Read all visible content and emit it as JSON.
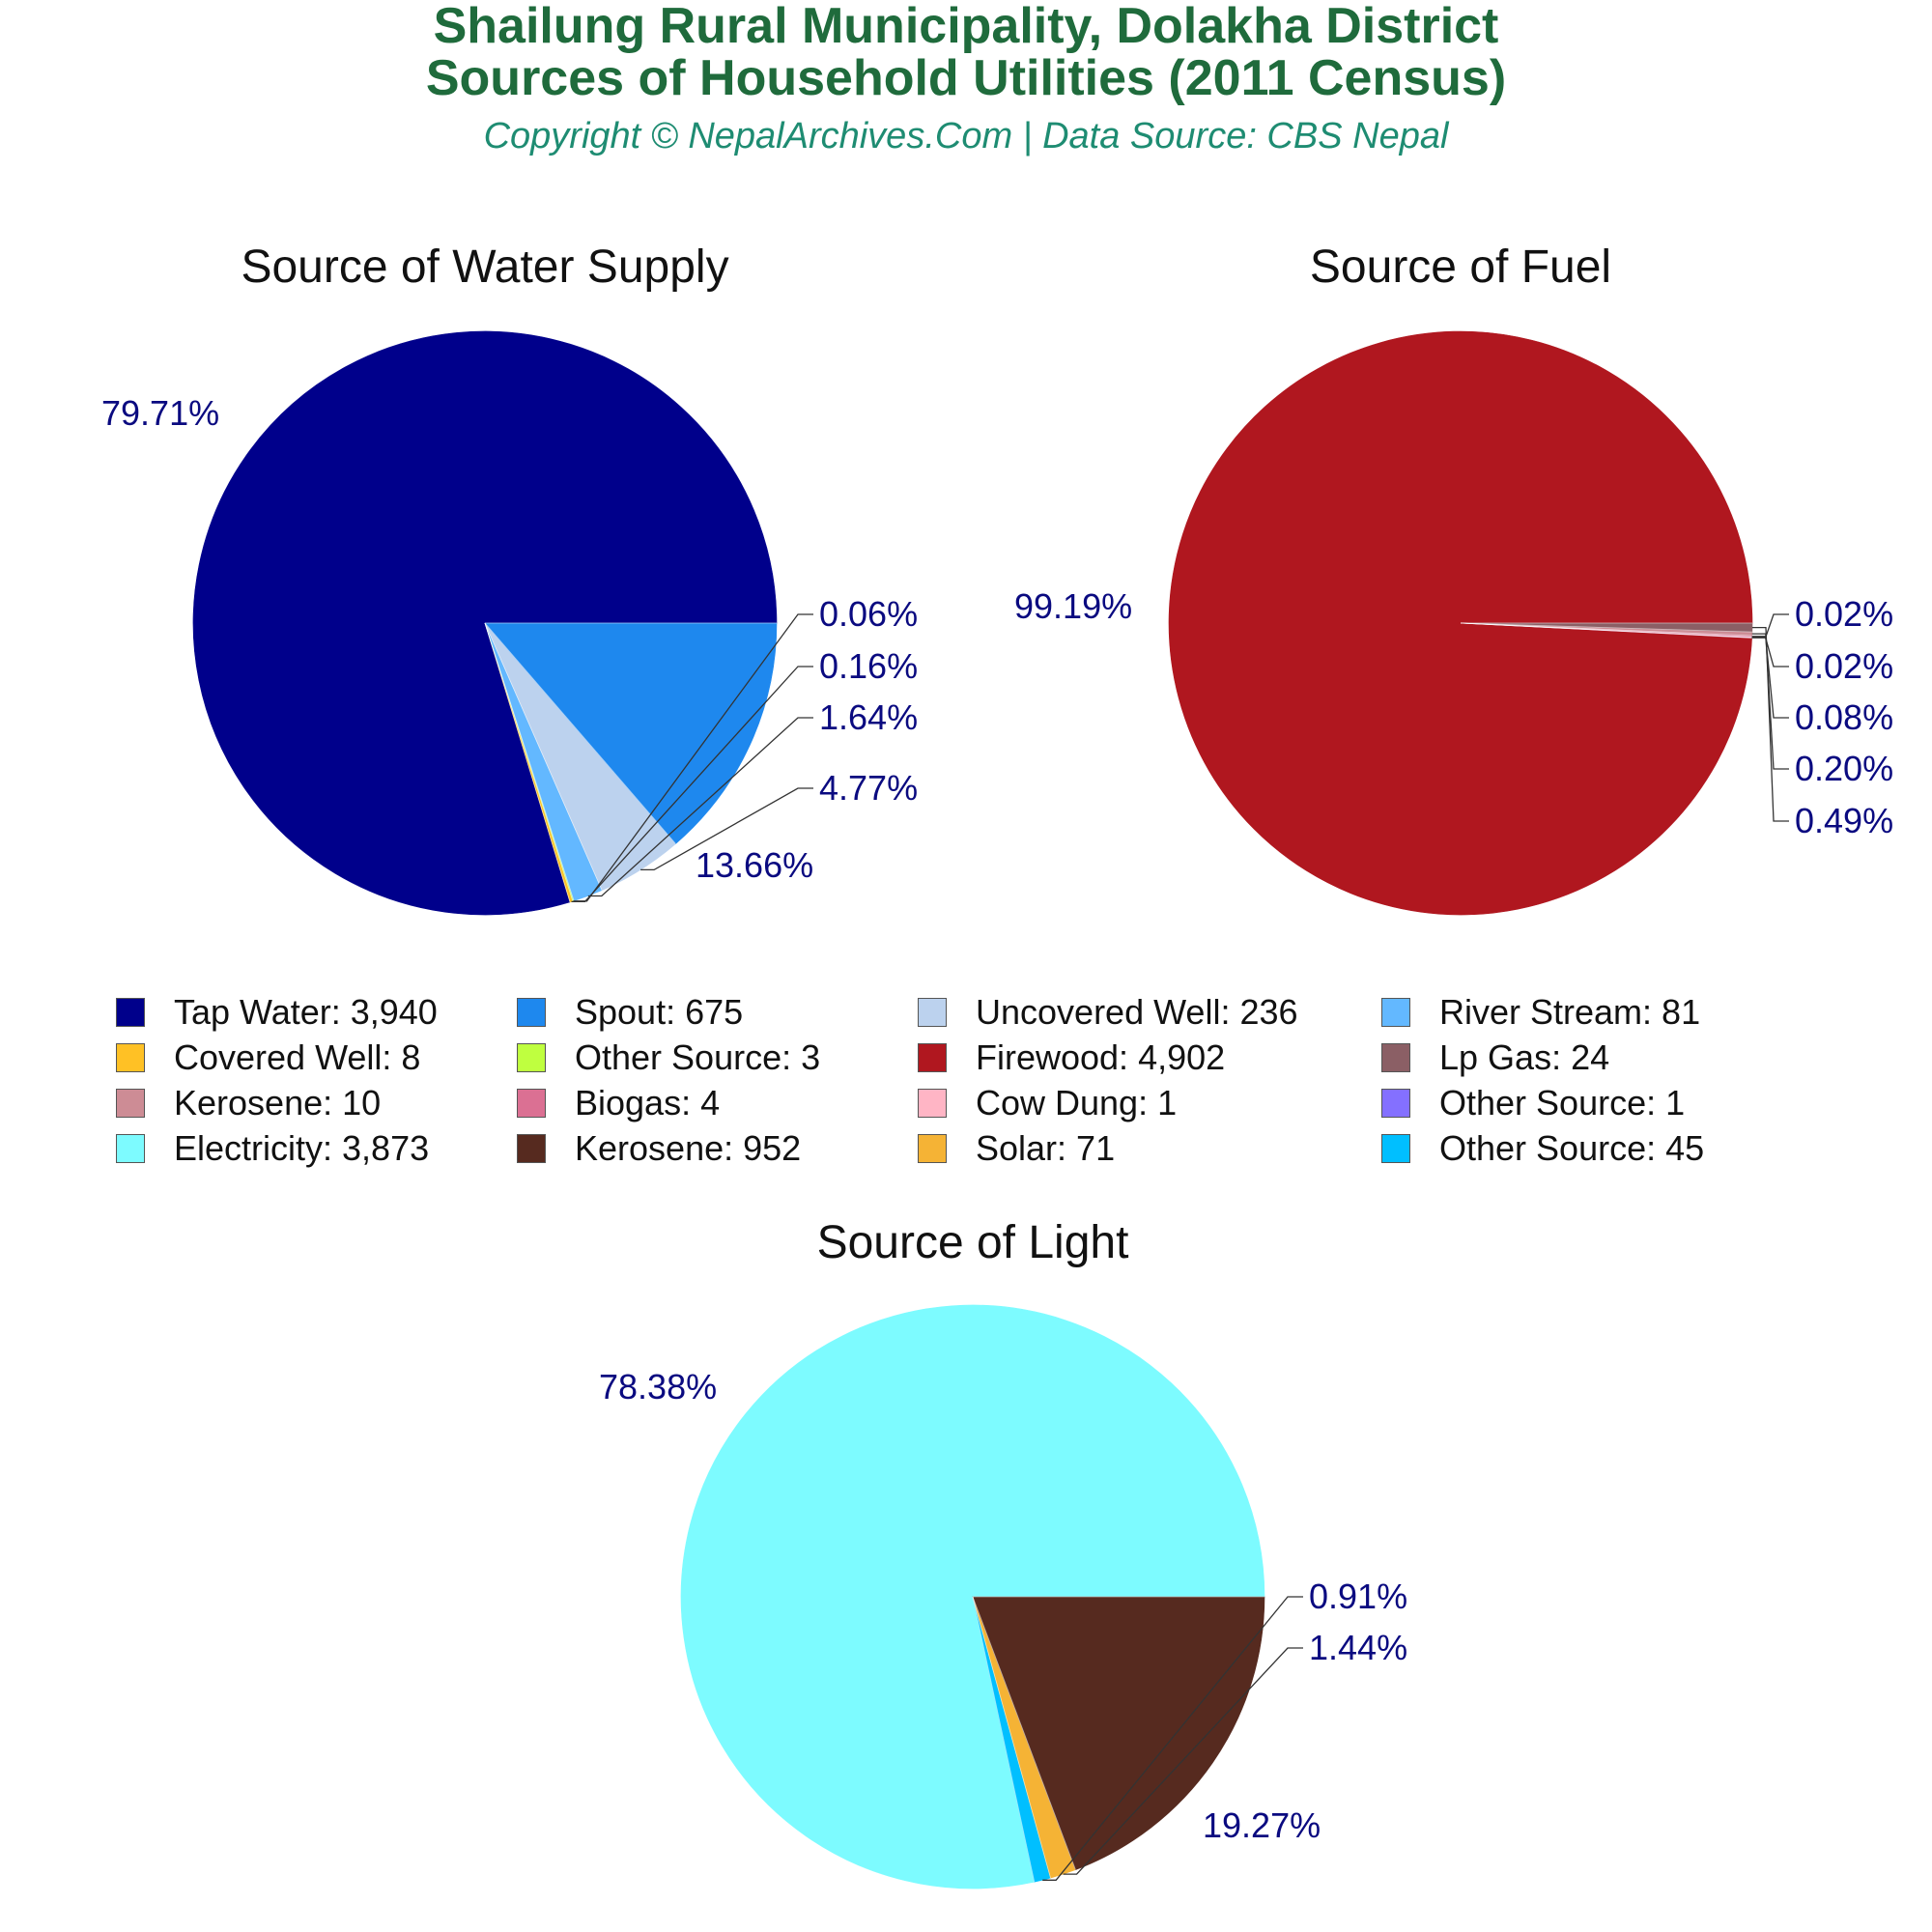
{
  "header": {
    "title_line1": "Shailung Rural Municipality, Dolakha District",
    "title_line2": "Sources of Household Utilities (2011 Census)",
    "subtitle": "Copyright © NepalArchives.Com | Data Source: CBS Nepal"
  },
  "chart_data": [
    {
      "type": "pie",
      "title": "Source of Water Supply",
      "slices": [
        {
          "label": "Tap Water",
          "value": 3940,
          "pct": "79.71%",
          "color": "#00008b"
        },
        {
          "label": "Covered Well",
          "value": 8,
          "pct": "",
          "color": "#ffc125"
        },
        {
          "label": "Other Source",
          "value": 3,
          "pct": "0.06%",
          "color": "#bfff3f"
        },
        {
          "label": "River Stream",
          "value": 81,
          "pct": "1.64%",
          "color": "#63b8ff"
        },
        {
          "label": "Uncovered Well",
          "value": 236,
          "pct": "4.77%",
          "color": "#bcd2ee"
        },
        {
          "label": "Spout",
          "value": 675,
          "pct": "13.66%",
          "color": "#1e88ee"
        }
      ],
      "extra_labels": [
        "0.16%"
      ]
    },
    {
      "type": "pie",
      "title": "Source of Fuel",
      "slices": [
        {
          "label": "Firewood",
          "value": 4902,
          "pct": "99.19%",
          "color": "#b0171f"
        },
        {
          "label": "Cow Dung",
          "value": 1,
          "pct": "0.02%",
          "color": "#ffb5c5"
        },
        {
          "label": "Other Source",
          "value": 1,
          "pct": "0.02%",
          "color": "#8470ff"
        },
        {
          "label": "Biogas",
          "value": 4,
          "pct": "0.08%",
          "color": "#db7093"
        },
        {
          "label": "Kerosene",
          "value": 10,
          "pct": "0.20%",
          "color": "#cd8c95"
        },
        {
          "label": "Lp Gas",
          "value": 24,
          "pct": "0.49%",
          "color": "#8b5f65"
        }
      ]
    },
    {
      "type": "pie",
      "title": "Source of Light",
      "slices": [
        {
          "label": "Electricity",
          "value": 3873,
          "pct": "78.38%",
          "color": "#7dfbff"
        },
        {
          "label": "Other Source",
          "value": 45,
          "pct": "0.91%",
          "color": "#00bfff"
        },
        {
          "label": "Solar",
          "value": 71,
          "pct": "1.44%",
          "color": "#f5b335"
        },
        {
          "label": "Kerosene",
          "value": 952,
          "pct": "19.27%",
          "color": "#562a1f"
        }
      ]
    }
  ],
  "legend": [
    [
      {
        "text": "Tap Water: 3,940",
        "color": "#00008b"
      },
      {
        "text": "Spout: 675",
        "color": "#1e88ee"
      },
      {
        "text": "Uncovered Well: 236",
        "color": "#bcd2ee"
      },
      {
        "text": "River Stream: 81",
        "color": "#63b8ff"
      }
    ],
    [
      {
        "text": "Covered Well: 8",
        "color": "#ffc125"
      },
      {
        "text": "Other Source: 3",
        "color": "#bfff3f"
      },
      {
        "text": "Firewood: 4,902",
        "color": "#b0171f"
      },
      {
        "text": "Lp Gas: 24",
        "color": "#8b5f65"
      }
    ],
    [
      {
        "text": "Kerosene: 10",
        "color": "#cd8c95"
      },
      {
        "text": "Biogas: 4",
        "color": "#db7093"
      },
      {
        "text": "Cow Dung: 1",
        "color": "#ffb5c5"
      },
      {
        "text": "Other Source: 1",
        "color": "#8470ff"
      }
    ],
    [
      {
        "text": "Electricity: 3,873",
        "color": "#7dfbff"
      },
      {
        "text": "Kerosene: 952",
        "color": "#562a1f"
      },
      {
        "text": "Solar: 71",
        "color": "#f5b335"
      },
      {
        "text": "Other Source: 45",
        "color": "#00bfff"
      }
    ]
  ]
}
